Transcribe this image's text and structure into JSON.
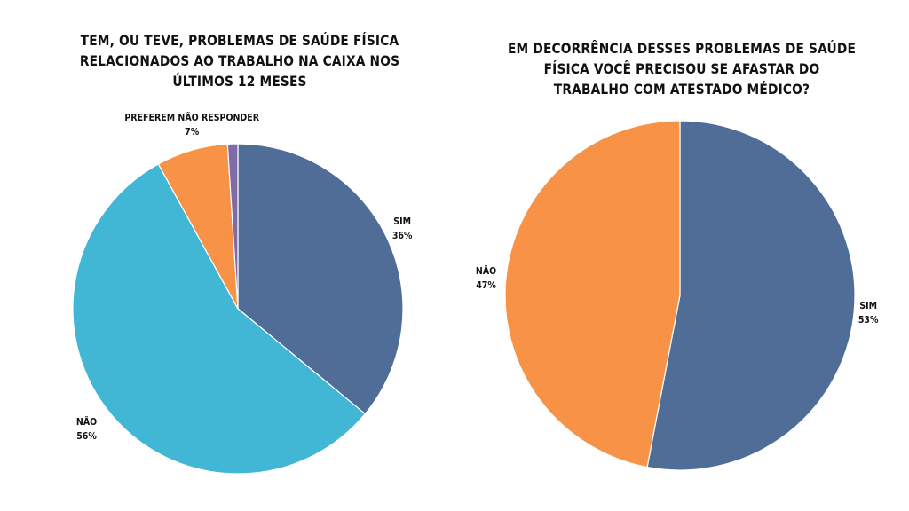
{
  "chart_data": [
    {
      "type": "pie",
      "title": "TEM, OU TEVE, PROBLEMAS DE SAÚDE FÍSICA RELACIONADOS AO TRABALHO NA CAIXA NOS ÚLTIMOS 12 MESES",
      "slices": [
        {
          "name": "SIM",
          "value": 36,
          "label": "36%",
          "color": "#4F6D96"
        },
        {
          "name": "NÃO",
          "value": 56,
          "label": "56%",
          "color": "#41B7D5"
        },
        {
          "name": "PREFEREM NÃO RESPONDER",
          "value": 7,
          "label": "7%",
          "color": "#F79246"
        },
        {
          "name": "",
          "value": 1,
          "label": "",
          "color": "#7E6BA8"
        }
      ]
    },
    {
      "type": "pie",
      "title": "EM DECORRÊNCIA DESSES PROBLEMAS DE SAÚDE FÍSICA VOCÊ PRECISOU SE AFASTAR DO TRABALHO COM ATESTADO MÉDICO?",
      "slices": [
        {
          "name": "SIM",
          "value": 53,
          "label": "53%",
          "color": "#4F6D96"
        },
        {
          "name": "NÃO",
          "value": 47,
          "label": "47%",
          "color": "#F79246"
        }
      ]
    }
  ]
}
